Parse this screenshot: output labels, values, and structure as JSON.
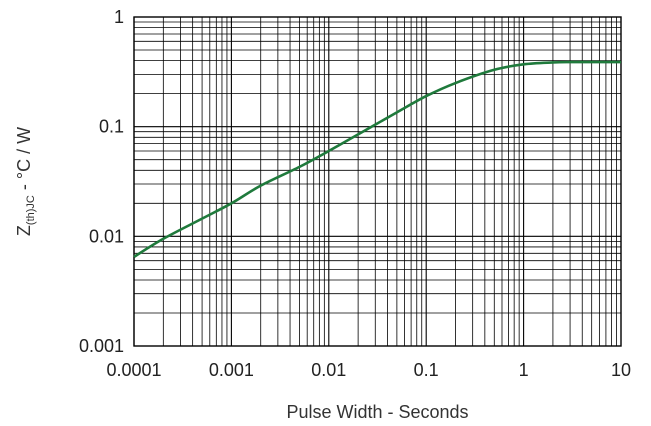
{
  "chart_data": {
    "type": "line",
    "title": "",
    "xlabel": "Pulse Width - Seconds",
    "ylabel": {
      "main": "Z",
      "subscript": "(th)JC",
      "rest": " - °C / W"
    },
    "x_scale": "log",
    "y_scale": "log",
    "xlim": [
      0.0001,
      10
    ],
    "ylim": [
      0.001,
      1
    ],
    "x_ticks": [
      0.0001,
      0.001,
      0.01,
      0.1,
      1,
      10
    ],
    "x_tick_labels": [
      "0.0001",
      "0.001",
      "0.01",
      "0.1",
      "1",
      "10"
    ],
    "y_ticks": [
      0.001,
      0.01,
      0.1,
      1
    ],
    "y_tick_labels": [
      "0.001",
      "0.01",
      "0.1",
      "1"
    ],
    "grid": true,
    "series": [
      {
        "color": "#1f7a3c",
        "x": [
          0.0001,
          0.0002,
          0.0005,
          0.001,
          0.002,
          0.005,
          0.01,
          0.02,
          0.05,
          0.1,
          0.2,
          0.5,
          1,
          2,
          3,
          5,
          10
        ],
        "y": [
          0.0065,
          0.0095,
          0.0145,
          0.02,
          0.029,
          0.043,
          0.06,
          0.085,
          0.135,
          0.19,
          0.25,
          0.33,
          0.37,
          0.385,
          0.388,
          0.388,
          0.388
        ]
      }
    ]
  }
}
